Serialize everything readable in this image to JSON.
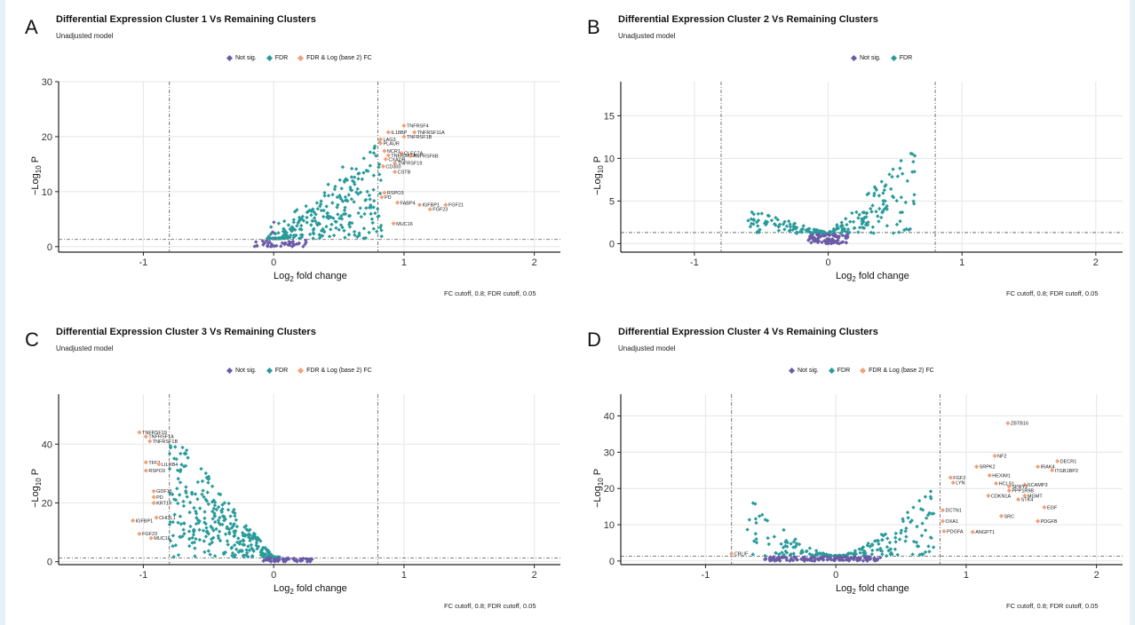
{
  "figure": {
    "panels": [
      {
        "letter": "A",
        "title": "Differential Expression Cluster 1 Vs Remaining Clusters",
        "subtitle": "Unadjusted model",
        "legend": [
          {
            "label": "Not sig.",
            "color": "#6b5aa6"
          },
          {
            "label": "FDR",
            "color": "#2a9a9a"
          },
          {
            "label": "FDR & Log (base 2) FC",
            "color": "#f0a07a"
          }
        ],
        "ylabel_main": "−Log",
        "ylabel_sub": "10",
        "ylabel_tail": " P",
        "xlabel_main": "Log",
        "xlabel_sub": "2",
        "xlabel_tail": " fold change",
        "caption": "FC cutoff, 0.8;  FDR cutoff, 0.05"
      },
      {
        "letter": "B",
        "title": "Differential Expression Cluster 2 Vs Remaining Clusters",
        "subtitle": "Unadjusted model",
        "legend": [
          {
            "label": "Not sig.",
            "color": "#6b5aa6"
          },
          {
            "label": "FDR",
            "color": "#2a9a9a"
          }
        ],
        "ylabel_main": "−Log",
        "ylabel_sub": "10",
        "ylabel_tail": " P",
        "xlabel_main": "Log",
        "xlabel_sub": "2",
        "xlabel_tail": " fold change",
        "caption": "FC cutoff, 0.8;  FDR cutoff, 0.05"
      },
      {
        "letter": "C",
        "title": "Differential Expression Cluster 3 Vs Remaining Clusters",
        "subtitle": "Unadjusted model",
        "legend": [
          {
            "label": "Not sig.",
            "color": "#6b5aa6"
          },
          {
            "label": "FDR",
            "color": "#2a9a9a"
          },
          {
            "label": "FDR & Log (base 2) FC",
            "color": "#f0a07a"
          }
        ],
        "ylabel_main": "−Log",
        "ylabel_sub": "10",
        "ylabel_tail": " P",
        "xlabel_main": "Log",
        "xlabel_sub": "2",
        "xlabel_tail": " fold change",
        "caption": "FC cutoff, 0.8;  FDR cutoff, 0.05"
      },
      {
        "letter": "D",
        "title": "Differential Expression Cluster 4 Vs Remaining Clusters",
        "subtitle": "Unadjusted model",
        "legend": [
          {
            "label": "Not sig.",
            "color": "#6b5aa6"
          },
          {
            "label": "FDR",
            "color": "#2a9a9a"
          },
          {
            "label": "FDR & Log (base 2) FC",
            "color": "#f0a07a"
          }
        ],
        "ylabel_main": "−Log",
        "ylabel_sub": "10",
        "ylabel_tail": " P",
        "xlabel_main": "Log",
        "xlabel_sub": "2",
        "xlabel_tail": " fold change",
        "caption": "FC cutoff, 0.8;  FDR cutoff, 0.05"
      }
    ]
  },
  "chart_data": [
    {
      "type": "scatter",
      "xlim": [
        -1.65,
        2.2
      ],
      "ylim": [
        -1,
        30
      ],
      "xticks": [
        -1,
        0,
        1,
        2
      ],
      "yticks": [
        0,
        10,
        20,
        30
      ],
      "fc_cutoff": 0.8,
      "p_cutoff_y": 1.3,
      "labeled_points": [
        {
          "label": "TNFRSF4",
          "x": 1.0,
          "y": 22.0
        },
        {
          "label": "IL18BP",
          "x": 0.88,
          "y": 20.8
        },
        {
          "label": "TNFRSF11A",
          "x": 1.08,
          "y": 20.8
        },
        {
          "label": "TNFRSF1B",
          "x": 1.0,
          "y": 20.0
        },
        {
          "label": "LAG3",
          "x": 0.82,
          "y": 19.5
        },
        {
          "label": "PLAUR",
          "x": 0.82,
          "y": 18.8
        },
        {
          "label": "NCR1",
          "x": 0.85,
          "y": 17.4
        },
        {
          "label": "CLEC7A",
          "x": 0.98,
          "y": 17.0
        },
        {
          "label": "TNFRSF1A",
          "x": 0.88,
          "y": 16.6
        },
        {
          "label": "TNFRSF6B",
          "x": 1.05,
          "y": 16.5
        },
        {
          "label": "CXADR",
          "x": 0.86,
          "y": 15.9
        },
        {
          "label": "TNFRSF19",
          "x": 0.93,
          "y": 15.2
        },
        {
          "label": "CD300",
          "x": 0.84,
          "y": 14.6
        },
        {
          "label": "CSTB",
          "x": 0.93,
          "y": 13.6
        },
        {
          "label": "RSPO3",
          "x": 0.85,
          "y": 9.8
        },
        {
          "label": "PD",
          "x": 0.83,
          "y": 9.0
        },
        {
          "label": "FABP4",
          "x": 0.95,
          "y": 8.0
        },
        {
          "label": "IGFBP1",
          "x": 1.12,
          "y": 7.6
        },
        {
          "label": "FGF21",
          "x": 1.32,
          "y": 7.6
        },
        {
          "label": "FGF23",
          "x": 1.2,
          "y": 6.8
        },
        {
          "label": "MUC16",
          "x": 0.92,
          "y": 4.2
        }
      ]
    },
    {
      "type": "scatter",
      "xlim": [
        -1.55,
        2.2
      ],
      "ylim": [
        -1,
        19
      ],
      "xticks": [
        -1,
        0,
        1,
        2
      ],
      "yticks": [
        0,
        5,
        10,
        15
      ],
      "fc_cutoff": 0.8,
      "p_cutoff_y": 1.3,
      "labeled_points": []
    },
    {
      "type": "scatter",
      "xlim": [
        -1.65,
        2.2
      ],
      "ylim": [
        -1,
        57
      ],
      "xticks": [
        -1,
        0,
        1,
        2
      ],
      "yticks": [
        0,
        20,
        40
      ],
      "fc_cutoff": 0.8,
      "p_cutoff_y": 1.3,
      "labeled_points": [
        {
          "label": "TNFRSF19",
          "x": -1.03,
          "y": 44.0
        },
        {
          "label": "TNFRSF1A",
          "x": -0.98,
          "y": 42.6
        },
        {
          "label": "TNFRSF1B",
          "x": -0.95,
          "y": 41.0
        },
        {
          "label": "TFF3",
          "x": -0.98,
          "y": 33.8
        },
        {
          "label": "LILRB4",
          "x": -0.88,
          "y": 33.2
        },
        {
          "label": "RSPO3",
          "x": -0.98,
          "y": 31.0
        },
        {
          "label": "GDF15",
          "x": -0.92,
          "y": 24.0
        },
        {
          "label": "PD",
          "x": -0.92,
          "y": 22.0
        },
        {
          "label": "KRT19",
          "x": -0.92,
          "y": 20.0
        },
        {
          "label": "CHI3L1",
          "x": -0.9,
          "y": 15.0
        },
        {
          "label": "IGFBP1",
          "x": -1.08,
          "y": 14.0
        },
        {
          "label": "FGF23",
          "x": -1.03,
          "y": 9.5
        },
        {
          "label": "MUC16",
          "x": -0.94,
          "y": 8.0
        }
      ]
    },
    {
      "type": "scatter",
      "xlim": [
        -1.65,
        2.2
      ],
      "ylim": [
        -1,
        46
      ],
      "xticks": [
        -1,
        0,
        1,
        2
      ],
      "yticks": [
        0,
        10,
        20,
        30,
        40
      ],
      "fc_cutoff": 0.8,
      "p_cutoff_y": 1.3,
      "labeled_points": [
        {
          "label": "ZBTB16",
          "x": 1.32,
          "y": 38.0
        },
        {
          "label": "DECR1",
          "x": 1.7,
          "y": 27.5
        },
        {
          "label": "NF2",
          "x": 1.22,
          "y": 29.0
        },
        {
          "label": "IRAK4",
          "x": 1.55,
          "y": 26.0
        },
        {
          "label": "SRPK2",
          "x": 1.08,
          "y": 26.0
        },
        {
          "label": "ITGB1BP2",
          "x": 1.66,
          "y": 25.0
        },
        {
          "label": "HEXIM1",
          "x": 1.18,
          "y": 23.6
        },
        {
          "label": "FGF2",
          "x": 0.88,
          "y": 23.0
        },
        {
          "label": "LYN",
          "x": 0.9,
          "y": 21.6
        },
        {
          "label": "HCLS1",
          "x": 1.23,
          "y": 21.4
        },
        {
          "label": "SCAMP3",
          "x": 1.45,
          "y": 21.0
        },
        {
          "label": "SPRY2",
          "x": 1.33,
          "y": 20.6
        },
        {
          "label": "PPP1R9B",
          "x": 1.33,
          "y": 19.4
        },
        {
          "label": "CDKN1A",
          "x": 1.17,
          "y": 18.0
        },
        {
          "label": "MGMT",
          "x": 1.45,
          "y": 18.0
        },
        {
          "label": "STK4",
          "x": 1.4,
          "y": 17.0
        },
        {
          "label": "EGF",
          "x": 1.6,
          "y": 14.8
        },
        {
          "label": "DCTN1",
          "x": 0.82,
          "y": 14.0
        },
        {
          "label": "SRC",
          "x": 1.27,
          "y": 12.4
        },
        {
          "label": "PDGFB",
          "x": 1.55,
          "y": 11.0
        },
        {
          "label": "OXA1",
          "x": 0.82,
          "y": 11.0
        },
        {
          "label": "ANGPT1",
          "x": 1.05,
          "y": 8.0
        },
        {
          "label": "PDGFA",
          "x": 0.83,
          "y": 8.2
        },
        {
          "label": "CBLIF",
          "x": -0.8,
          "y": 2.0
        }
      ]
    }
  ]
}
